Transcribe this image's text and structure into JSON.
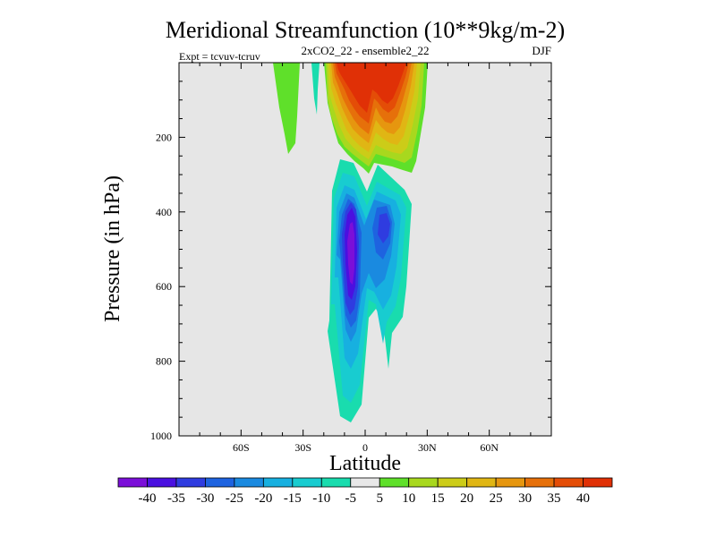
{
  "chart_data": {
    "type": "heatmap",
    "title": "Meridional Streamfunction (10**9kg/m-2)",
    "subtitle_left": "Expt = tcvuv-tcruv",
    "subtitle_center": "2xCO2_22 - ensemble2_22",
    "subtitle_right": "DJF",
    "xlabel": "Latitude",
    "ylabel": "Pressure (in hPa)",
    "xlim": [
      -90,
      90
    ],
    "ylim": [
      1000,
      0
    ],
    "x_ticks": [
      {
        "value": -60,
        "label": "60S"
      },
      {
        "value": -30,
        "label": "30S"
      },
      {
        "value": 0,
        "label": "0"
      },
      {
        "value": 30,
        "label": "30N"
      },
      {
        "value": 60,
        "label": "60N"
      }
    ],
    "y_ticks": [
      {
        "value": 200,
        "label": "200"
      },
      {
        "value": 400,
        "label": "400"
      },
      {
        "value": 600,
        "label": "600"
      },
      {
        "value": 800,
        "label": "800"
      },
      {
        "value": 1000,
        "label": "1000"
      }
    ],
    "background_color": "#e6e6e6",
    "levels": [
      -40,
      -35,
      -30,
      -25,
      -20,
      -15,
      -10,
      -5,
      5,
      10,
      15,
      20,
      25,
      30,
      35,
      40
    ],
    "colorbar_colors": [
      "#7b0fd8",
      "#4a10e0",
      "#2f3ce0",
      "#1e63e0",
      "#1a8ae0",
      "#17b0e0",
      "#18ccd0",
      "#19dcae",
      "#e8e8e8",
      "#5fe02a",
      "#a8d81e",
      "#cccc18",
      "#e0b614",
      "#e6960f",
      "#e6700a",
      "#e44d07",
      "#e03006"
    ],
    "regions": [
      {
        "name": "Positive cell (SH upper troposphere)",
        "level_min": 5,
        "level_max": 10,
        "lat": [
          -38,
          -28
        ],
        "p": [
          0,
          250
        ]
      },
      {
        "name": "Positive cell (tropical upper troposphere)",
        "level_min": 5,
        "level_max": 45,
        "lat": [
          -15,
          25
        ],
        "p": [
          0,
          300
        ]
      },
      {
        "name": "Negative cell (deep tropics)",
        "level_min": -40,
        "level_max": -5,
        "lat": [
          -15,
          20
        ],
        "p": [
          270,
          960
        ]
      }
    ]
  }
}
